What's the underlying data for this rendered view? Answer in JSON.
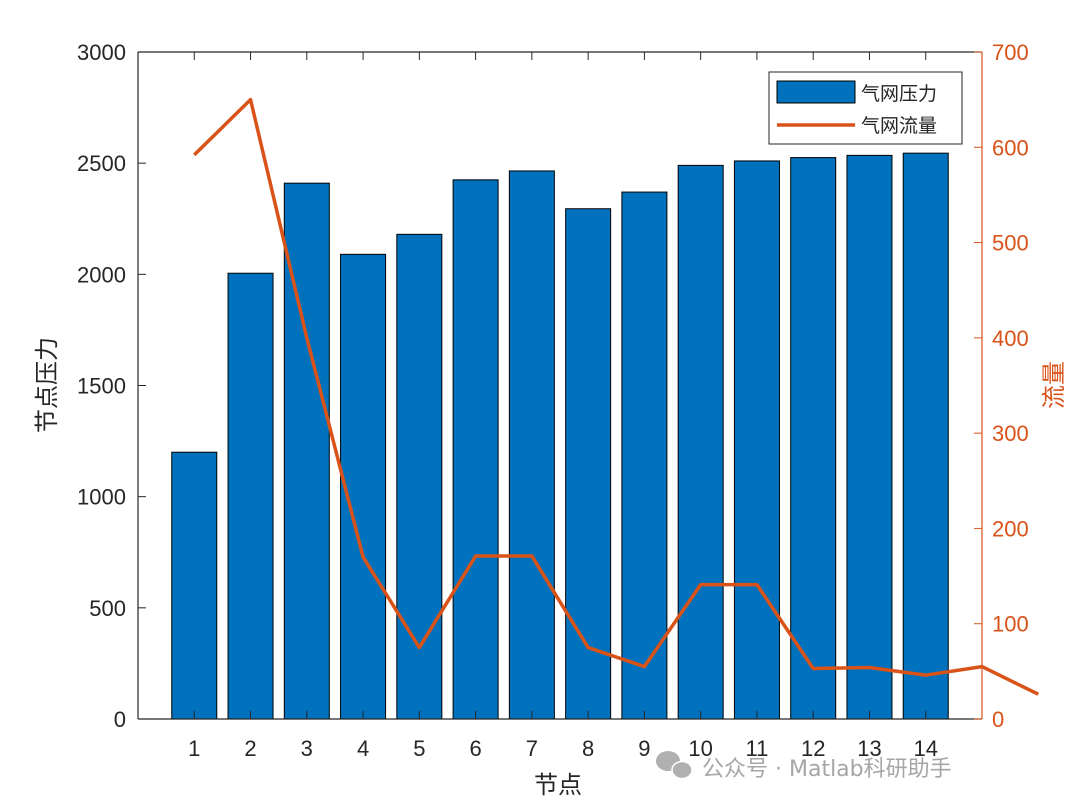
{
  "chart_data": {
    "type": "bar",
    "xlabel": "节点",
    "ylabel": "节点压力",
    "y2label": "流量",
    "categories": [
      "1",
      "2",
      "3",
      "4",
      "5",
      "6",
      "7",
      "8",
      "9",
      "10",
      "11",
      "12",
      "13",
      "14"
    ],
    "ylim": [
      0,
      3000
    ],
    "y2lim": [
      0,
      700
    ],
    "xlim": [
      0,
      15
    ],
    "yticks": [
      0,
      500,
      1000,
      1500,
      2000,
      2500,
      3000
    ],
    "y2ticks": [
      0,
      100,
      200,
      300,
      400,
      500,
      600,
      700
    ],
    "series": [
      {
        "name": "气网压力",
        "type": "bar",
        "axis": "left",
        "x": [
          1,
          2,
          3,
          4,
          5,
          6,
          7,
          8,
          9,
          10,
          11,
          12,
          13,
          14
        ],
        "values": [
          1200,
          2005,
          2410,
          2090,
          2180,
          2425,
          2465,
          2295,
          2370,
          2490,
          2510,
          2525,
          2535,
          2545
        ],
        "color": "#0072BD"
      },
      {
        "name": "气网流量",
        "type": "line",
        "axis": "right",
        "x": [
          1,
          2,
          3,
          4,
          5,
          6,
          7,
          8,
          9,
          10,
          11,
          12,
          13,
          14,
          15,
          16
        ],
        "values": [
          592,
          650,
          400,
          170,
          75,
          171,
          171,
          75,
          55,
          141,
          141,
          53,
          54,
          46,
          55,
          26
        ],
        "color": "#D95319"
      }
    ],
    "legend_position": "top-right",
    "grid": false,
    "watermark": "公众号 · Matlab科研助手"
  }
}
